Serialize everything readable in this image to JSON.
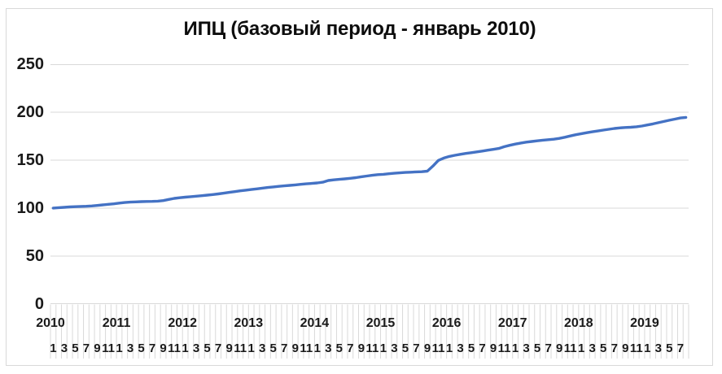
{
  "chart_data": {
    "type": "line",
    "title": "ИПЦ (базовый период - январь 2010)",
    "xlabel": "",
    "ylabel": "",
    "y_ticks": [
      0,
      50,
      100,
      150,
      200,
      250
    ],
    "ylim": [
      0,
      250
    ],
    "grid": "horizontal",
    "legend": "none",
    "x_years": [
      "2010",
      "2011",
      "2012",
      "2013",
      "2014",
      "2015",
      "2016",
      "2017",
      "2018",
      "2019"
    ],
    "months_per_year": 12,
    "month_tick_labels": [
      "1",
      "3",
      "5",
      "7",
      "9",
      "11"
    ],
    "last_year_visible_month_labels": [
      "1",
      "3",
      "5",
      "7"
    ],
    "series": [
      {
        "name": "ИПЦ",
        "color": "#4472C4",
        "values": [
          100.0,
          100.4,
          100.8,
          101.2,
          101.5,
          101.7,
          101.9,
          102.2,
          102.7,
          103.3,
          103.9,
          104.4,
          105.2,
          105.8,
          106.2,
          106.5,
          106.7,
          106.9,
          107.0,
          107.2,
          107.8,
          109.0,
          110.1,
          110.8,
          111.4,
          111.9,
          112.4,
          112.9,
          113.5,
          114.1,
          114.8,
          115.6,
          116.4,
          117.2,
          118.0,
          118.7,
          119.4,
          120.1,
          120.8,
          121.5,
          122.1,
          122.7,
          123.2,
          123.7,
          124.2,
          124.8,
          125.3,
          125.8,
          126.3,
          127.0,
          128.8,
          129.5,
          130.0,
          130.5,
          131.1,
          131.8,
          132.7,
          133.5,
          134.3,
          134.9,
          135.3,
          135.9,
          136.4,
          136.8,
          137.2,
          137.5,
          137.8,
          138.0,
          138.6,
          143.8,
          149.8,
          152.3,
          154.0,
          155.2,
          156.2,
          157.1,
          157.9,
          158.7,
          159.6,
          160.5,
          161.4,
          162.3,
          164.2,
          165.6,
          166.9,
          168.0,
          168.9,
          169.6,
          170.3,
          171.0,
          171.5,
          172.0,
          172.8,
          174.0,
          175.4,
          176.7,
          177.8,
          178.8,
          179.7,
          180.6,
          181.5,
          182.4,
          183.2,
          183.8,
          184.2,
          184.5,
          185.0,
          185.8,
          186.9,
          188.0,
          189.2,
          190.5,
          191.8,
          193.0,
          194.2,
          194.8
        ]
      }
    ],
    "colors": {
      "line": "#4472C4",
      "grid": "#d9d9d9",
      "labels": "#1a1a1a",
      "title": "#0d0d0d",
      "background": "#ffffff"
    }
  }
}
